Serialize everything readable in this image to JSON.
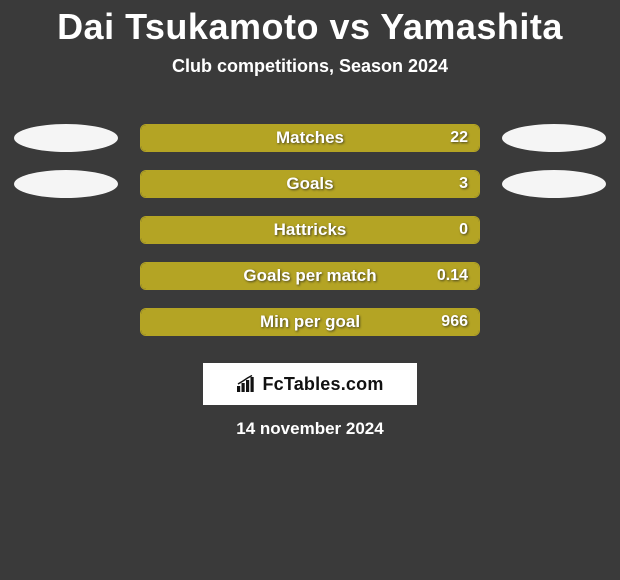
{
  "header": {
    "title": "Dai Tsukamoto vs Yamashita",
    "subtitle": "Club competitions, Season 2024"
  },
  "avatar_colors": {
    "left": "#f5f5f5",
    "right": "#f5f5f5"
  },
  "bar_style": {
    "fill_color": "#b4a424",
    "border_color": "#b4a424",
    "value_fontsize": 16,
    "label_fontsize": 17
  },
  "stats": [
    {
      "label": "Matches",
      "value": "22",
      "fill_pct": 100,
      "show_avatars": true
    },
    {
      "label": "Goals",
      "value": "3",
      "fill_pct": 100,
      "show_avatars": true
    },
    {
      "label": "Hattricks",
      "value": "0",
      "fill_pct": 100,
      "show_avatars": false
    },
    {
      "label": "Goals per match",
      "value": "0.14",
      "fill_pct": 100,
      "show_avatars": false
    },
    {
      "label": "Min per goal",
      "value": "966",
      "fill_pct": 100,
      "show_avatars": false
    }
  ],
  "logo": {
    "text": "FcTables.com"
  },
  "footer": {
    "date": "14 november 2024"
  },
  "background_color": "#3a3a3a"
}
